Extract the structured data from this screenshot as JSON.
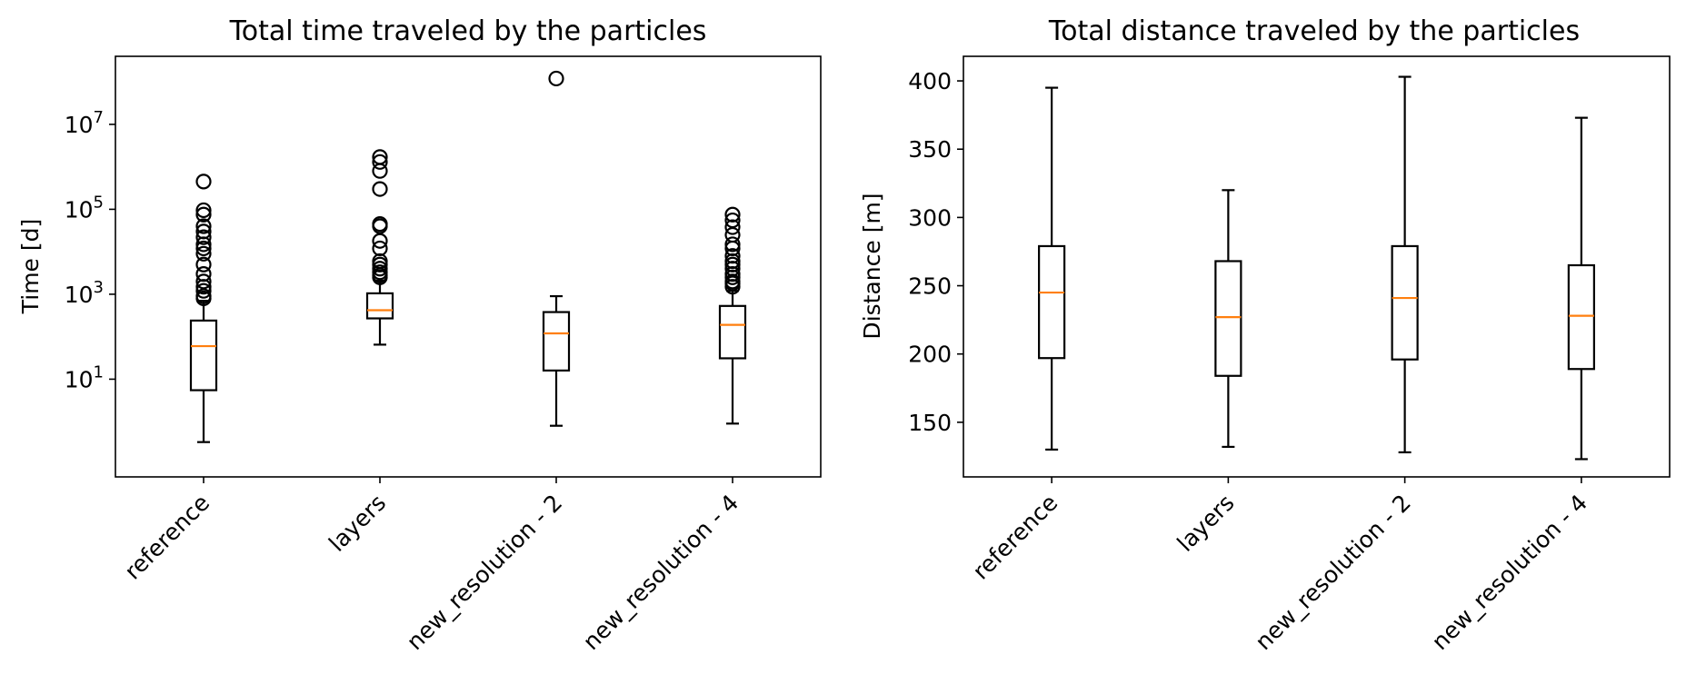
{
  "colors": {
    "box": "#000000",
    "median": "#ff7f0e",
    "background": "#ffffff"
  },
  "chart_data": [
    {
      "type": "box",
      "title": "Total time traveled by the particles",
      "xlabel": "",
      "ylabel": "Time [d]",
      "yscale": "log",
      "ylim": [
        0.05,
        400000000
      ],
      "yticks": [
        {
          "value": 10,
          "base": "10",
          "exp": "1"
        },
        {
          "value": 1000,
          "base": "10",
          "exp": "3"
        },
        {
          "value": 100000,
          "base": "10",
          "exp": "5"
        },
        {
          "value": 10000000,
          "base": "10",
          "exp": "7"
        }
      ],
      "categories": [
        "reference",
        "layers",
        "new_resolution - 2",
        "new_resolution - 4"
      ],
      "positions": [
        1,
        2,
        3,
        4
      ],
      "xlim": [
        0.5,
        4.5
      ],
      "grid": false,
      "boxes": [
        {
          "whislo": 0.33,
          "q1": 5.5,
          "med": 60,
          "q3": 240,
          "whishi": 700,
          "fliers": [
            450000,
            95000,
            75000,
            40000,
            30000,
            22000,
            15000,
            12000,
            9000,
            5000,
            3000,
            2000,
            1500,
            1200,
            900,
            800
          ]
        },
        {
          "whislo": 65,
          "q1": 270,
          "med": 420,
          "q3": 1050,
          "whishi": 2100,
          "fliers": [
            1700000,
            1300000,
            800000,
            300000,
            45000,
            40000,
            18000,
            12000,
            6000,
            5000,
            4000,
            3300,
            2800,
            2500
          ]
        },
        {
          "whislo": 0.8,
          "q1": 16,
          "med": 120,
          "q3": 380,
          "whishi": 900,
          "fliers": 120000000
        },
        {
          "whislo": 0.9,
          "q1": 31,
          "med": 190,
          "q3": 530,
          "whishi": 1200,
          "fliers": [
            75000,
            55000,
            38000,
            25000,
            15000,
            12000,
            8000,
            6000,
            5000,
            4000,
            3000,
            2500,
            2000,
            1800,
            1500
          ]
        }
      ]
    },
    {
      "type": "box",
      "title": "Total distance traveled by the particles",
      "xlabel": "",
      "ylabel": "Distance [m]",
      "yscale": "linear",
      "ylim": [
        110,
        418
      ],
      "yticks": [
        150,
        200,
        250,
        300,
        350,
        400
      ],
      "categories": [
        "reference",
        "layers",
        "new_resolution - 2",
        "new_resolution - 4"
      ],
      "positions": [
        1,
        2,
        3,
        4
      ],
      "xlim": [
        0.5,
        4.5
      ],
      "grid": false,
      "boxes": [
        {
          "whislo": 130,
          "q1": 197,
          "med": 245,
          "q3": 279,
          "whishi": 395,
          "fliers": []
        },
        {
          "whislo": 132,
          "q1": 184,
          "med": 227,
          "q3": 268,
          "whishi": 320,
          "fliers": []
        },
        {
          "whislo": 128,
          "q1": 196,
          "med": 241,
          "q3": 279,
          "whishi": 403,
          "fliers": []
        },
        {
          "whislo": 123,
          "q1": 189,
          "med": 228,
          "q3": 265,
          "whishi": 373,
          "fliers": []
        }
      ]
    }
  ]
}
